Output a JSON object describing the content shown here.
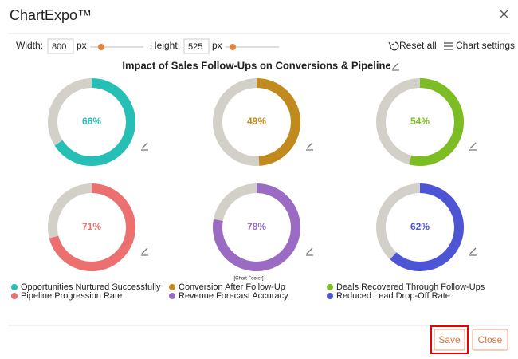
{
  "dialog": {
    "title": "ChartExpo™",
    "width_label": "Width:",
    "width_value": 800,
    "unit": "px",
    "height_label": "Height:",
    "height_value": 525,
    "reset": "Reset all",
    "settings": "Chart settings",
    "footer": "[Chart Footer]",
    "save": "Save",
    "close": "Close"
  },
  "chart_data": {
    "type": "donut",
    "title": "Impact of Sales Follow-Ups on Conversions & Pipeline",
    "track_color": "#d3d0c9",
    "series": [
      {
        "name": "Opportunities Nurtured Successfully",
        "color": "#26bfb5",
        "values": [
          66
        ],
        "value_labels": [
          "66%"
        ]
      },
      {
        "name": "Conversion After Follow-Up",
        "color": "#c08a1e",
        "values": [
          49
        ],
        "value_labels": [
          "49%"
        ]
      },
      {
        "name": "Deals Recovered Through Follow-Ups",
        "color": "#7bbd22",
        "values": [
          54
        ],
        "value_labels": [
          "54%"
        ]
      },
      {
        "name": "Pipeline Progression Rate",
        "color": "#ec7070",
        "values": [
          71
        ],
        "value_labels": [
          "71%"
        ]
      },
      {
        "name": "Revenue Forecast Accuracy",
        "color": "#9b6bc4",
        "values": [
          78
        ],
        "value_labels": [
          "78%"
        ]
      },
      {
        "name": "Reduced Lead Drop-Off Rate",
        "color": "#4e55d4",
        "values": [
          62
        ],
        "value_labels": [
          "62%"
        ]
      }
    ]
  }
}
